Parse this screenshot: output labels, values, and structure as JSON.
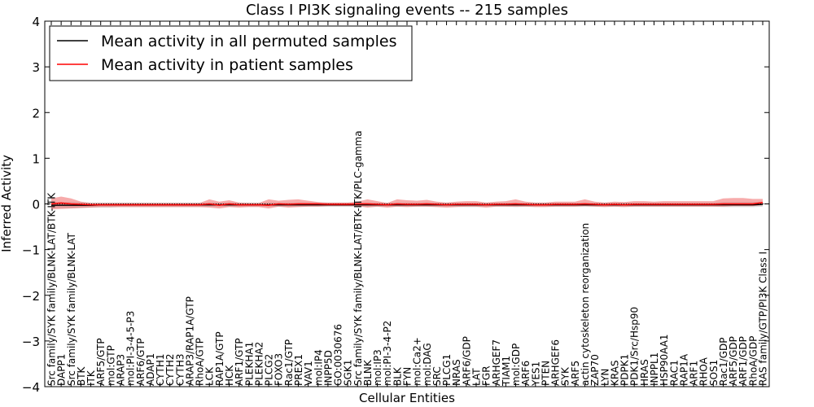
{
  "chart_data": {
    "type": "line",
    "title": "Class I PI3K signaling events -- 215 samples",
    "xlabel": "Cellular Entities",
    "ylabel": "Inferred Activity",
    "ylim": [
      -4,
      4
    ],
    "yticks": [
      -4,
      -3,
      -2,
      -1,
      0,
      1,
      2,
      3,
      4
    ],
    "ytick_labels": [
      "−4",
      "−3",
      "−2",
      "−1",
      "0",
      "1",
      "2",
      "3",
      "4"
    ],
    "grid": false,
    "legend_position": "top-left",
    "categories": [
      "Src family/SYK family/BLNK-LAT/BTK-ITK",
      "DAPP1",
      "Src family/SYK family/BLNK-LAT",
      "BTK",
      "ITK",
      "ARF5/GTP",
      "mol:GTP",
      "ARAP3",
      "mol:PI-3-4-5-P3",
      "ARF6/GTP",
      "ADAP1",
      "CYTH1",
      "CYTH2",
      "CYTH3",
      "ARAP3/RAP1A/GTP",
      "RhoA/GTP",
      "LCK",
      "RAP1A/GTP",
      "HCK",
      "ARF1/GTP",
      "PLEKHA1",
      "PLEKHA2",
      "PLCG2",
      "FOXO3",
      "Rac1/GTP",
      "PREX1",
      "VAV1",
      "mol:IP4",
      "INPP5D",
      "GO:0030676",
      "SGK1",
      "Src family/SYK family/BLNK-LAT/BTK-ITK/PLC-gamma",
      "BLNK",
      "mol:IP3",
      "mol:PI-3-4-P2",
      "BLK",
      "FYN",
      "mol:Ca2+",
      "mol:DAG",
      "SRC",
      "PLCG1",
      "NRAS",
      "ARF6/GDP",
      "LAT",
      "FGR",
      "ARHGEF7",
      "TIAM1",
      "mol:GDP",
      "ARF6",
      "YES1",
      "PTEN",
      "ARHGEF6",
      "SYK",
      "ARF5",
      "actin cytoskeleton reorganization",
      "ZAP70",
      "LYN",
      "KRAS",
      "PDPK1",
      "PDK1/Src/Hsp90",
      "HRAS",
      "INPPL1",
      "HSP90AA1",
      "RAC1",
      "RAP1A",
      "ARF1",
      "RHOA",
      "SOS1",
      "Rac1/GDP",
      "ARF5/GDP",
      "ARF1/GDP",
      "RhoA/GDP",
      "RAS family/GTP/PI3K Class I"
    ],
    "series": [
      {
        "name": "Mean activity in all permuted samples",
        "color": "#000000",
        "values": [
          -0.03,
          -0.03,
          -0.03,
          -0.03,
          -0.03,
          -0.02,
          -0.02,
          -0.02,
          -0.02,
          -0.02,
          -0.02,
          -0.02,
          -0.02,
          -0.02,
          -0.02,
          -0.02,
          -0.02,
          -0.02,
          -0.02,
          -0.02,
          -0.02,
          -0.02,
          -0.02,
          -0.02,
          -0.02,
          -0.02,
          -0.02,
          -0.02,
          -0.02,
          -0.02,
          -0.02,
          -0.02,
          -0.02,
          -0.02,
          -0.02,
          -0.02,
          -0.02,
          -0.02,
          -0.02,
          -0.02,
          -0.02,
          -0.02,
          -0.02,
          -0.02,
          -0.02,
          -0.02,
          -0.02,
          -0.02,
          -0.02,
          -0.02,
          -0.02,
          -0.02,
          -0.02,
          -0.02,
          -0.02,
          -0.02,
          -0.02,
          -0.02,
          -0.02,
          -0.02,
          -0.02,
          -0.02,
          -0.02,
          -0.02,
          -0.02,
          -0.02,
          -0.02,
          -0.02,
          -0.02,
          -0.02,
          -0.02,
          -0.02,
          -0.01
        ],
        "band_low": [
          -0.09,
          -0.09,
          -0.09,
          -0.09,
          -0.08,
          -0.08,
          -0.08,
          -0.07,
          -0.07,
          -0.07,
          -0.07,
          -0.07,
          -0.07,
          -0.07,
          -0.07,
          -0.07,
          -0.06,
          -0.06,
          -0.06,
          -0.06,
          -0.06,
          -0.06,
          -0.06,
          -0.06,
          -0.06,
          -0.06,
          -0.06,
          -0.06,
          -0.06,
          -0.06,
          -0.06,
          -0.06,
          -0.06,
          -0.06,
          -0.06,
          -0.06,
          -0.06,
          -0.06,
          -0.06,
          -0.06,
          -0.06,
          -0.06,
          -0.07,
          -0.07,
          -0.06,
          -0.06,
          -0.06,
          -0.07,
          -0.06,
          -0.06,
          -0.06,
          -0.06,
          -0.06,
          -0.06,
          -0.06,
          -0.06,
          -0.06,
          -0.06,
          -0.06,
          -0.06,
          -0.06,
          -0.06,
          -0.06,
          -0.06,
          -0.06,
          -0.06,
          -0.06,
          -0.06,
          -0.07,
          -0.07,
          -0.07,
          -0.07,
          -0.06
        ],
        "band_high": [
          0.04,
          0.04,
          0.04,
          0.04,
          0.03,
          0.03,
          0.03,
          0.03,
          0.03,
          0.03,
          0.03,
          0.03,
          0.03,
          0.03,
          0.03,
          0.03,
          0.03,
          0.03,
          0.03,
          0.03,
          0.03,
          0.03,
          0.03,
          0.03,
          0.03,
          0.03,
          0.03,
          0.03,
          0.03,
          0.03,
          0.03,
          0.03,
          0.03,
          0.03,
          0.03,
          0.03,
          0.03,
          0.03,
          0.03,
          0.03,
          0.03,
          0.03,
          0.03,
          0.03,
          0.03,
          0.03,
          0.03,
          0.03,
          0.03,
          0.03,
          0.03,
          0.03,
          0.03,
          0.03,
          0.03,
          0.03,
          0.03,
          0.03,
          0.03,
          0.03,
          0.03,
          0.03,
          0.03,
          0.03,
          0.03,
          0.03,
          0.03,
          0.03,
          0.04,
          0.04,
          0.04,
          0.04,
          0.05
        ]
      },
      {
        "name": "Mean activity in patient samples",
        "color": "#ff0000",
        "values": [
          0.0,
          0.02,
          0.0,
          -0.01,
          -0.02,
          -0.02,
          -0.02,
          -0.02,
          -0.02,
          -0.02,
          -0.02,
          -0.02,
          -0.02,
          -0.02,
          -0.02,
          -0.02,
          0.0,
          -0.03,
          0.0,
          -0.02,
          -0.02,
          -0.02,
          -0.03,
          0.0,
          -0.01,
          0.0,
          0.0,
          0.0,
          -0.01,
          -0.01,
          -0.01,
          0.0,
          0.0,
          -0.01,
          -0.02,
          0.0,
          -0.01,
          -0.01,
          0.0,
          -0.01,
          -0.02,
          -0.01,
          -0.01,
          -0.01,
          -0.02,
          -0.01,
          -0.01,
          0.0,
          -0.01,
          -0.02,
          -0.02,
          -0.01,
          -0.01,
          -0.01,
          0.0,
          -0.01,
          -0.02,
          -0.01,
          -0.02,
          -0.01,
          -0.01,
          -0.01,
          -0.01,
          -0.01,
          -0.01,
          -0.01,
          -0.01,
          -0.01,
          0.0,
          0.0,
          0.0,
          0.0,
          0.03
        ],
        "band_low": [
          -0.12,
          -0.11,
          -0.1,
          -0.09,
          -0.08,
          -0.07,
          -0.07,
          -0.07,
          -0.07,
          -0.07,
          -0.07,
          -0.07,
          -0.07,
          -0.07,
          -0.07,
          -0.07,
          -0.08,
          -0.1,
          -0.07,
          -0.08,
          -0.07,
          -0.07,
          -0.1,
          -0.06,
          -0.08,
          -0.07,
          -0.06,
          -0.06,
          -0.05,
          -0.05,
          -0.05,
          -0.05,
          -0.08,
          -0.06,
          -0.08,
          -0.06,
          -0.07,
          -0.06,
          -0.06,
          -0.07,
          -0.08,
          -0.07,
          -0.06,
          -0.06,
          -0.08,
          -0.06,
          -0.06,
          -0.06,
          -0.06,
          -0.07,
          -0.07,
          -0.06,
          -0.06,
          -0.06,
          -0.05,
          -0.06,
          -0.07,
          -0.06,
          -0.07,
          -0.06,
          -0.06,
          -0.06,
          -0.06,
          -0.06,
          -0.06,
          -0.06,
          -0.06,
          -0.06,
          -0.06,
          -0.05,
          -0.05,
          -0.05,
          -0.03
        ],
        "band_high": [
          0.12,
          0.16,
          0.12,
          0.05,
          0.02,
          0.02,
          0.02,
          0.02,
          0.02,
          0.02,
          0.02,
          0.02,
          0.02,
          0.02,
          0.02,
          0.02,
          0.1,
          0.05,
          0.08,
          0.03,
          0.02,
          0.02,
          0.1,
          0.07,
          0.09,
          0.1,
          0.07,
          0.04,
          0.03,
          0.03,
          0.03,
          0.05,
          0.1,
          0.06,
          0.02,
          0.1,
          0.08,
          0.07,
          0.09,
          0.05,
          0.03,
          0.05,
          0.06,
          0.06,
          0.03,
          0.05,
          0.06,
          0.1,
          0.05,
          0.03,
          0.03,
          0.05,
          0.05,
          0.05,
          0.1,
          0.05,
          0.03,
          0.05,
          0.04,
          0.06,
          0.06,
          0.05,
          0.06,
          0.06,
          0.06,
          0.06,
          0.06,
          0.06,
          0.12,
          0.13,
          0.13,
          0.11,
          0.11
        ]
      }
    ],
    "legend": [
      {
        "label": "Mean activity in all permuted samples",
        "color": "#000000"
      },
      {
        "label": "Mean activity in patient samples",
        "color": "#ff0000"
      }
    ]
  }
}
